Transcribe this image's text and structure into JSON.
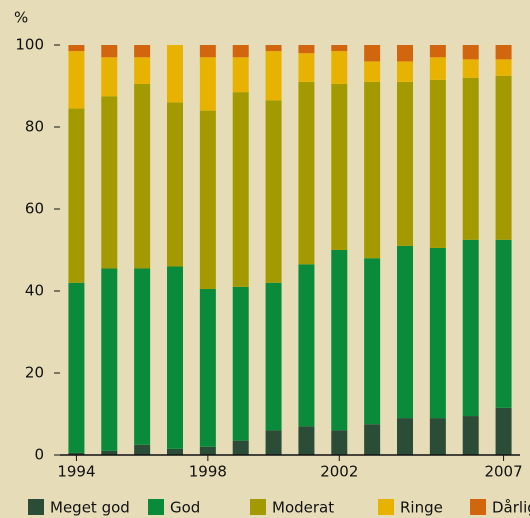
{
  "chart_data": {
    "type": "stacked_bar",
    "y_label": "%",
    "categories": [
      "1994",
      null,
      null,
      null,
      "1998",
      null,
      null,
      null,
      "2002",
      null,
      null,
      null,
      null,
      "2007"
    ],
    "series": [
      {
        "name": "Meget god",
        "color": "#2b4d37",
        "values": [
          0.5,
          1,
          2.5,
          1.5,
          2,
          3.5,
          6,
          7,
          6,
          7.5,
          9,
          9,
          9.5,
          11.5
        ]
      },
      {
        "name": "God",
        "color": "#0a8b3b",
        "values": [
          41.5,
          44.5,
          43,
          44.5,
          38.5,
          37.5,
          36,
          39.5,
          44,
          40.5,
          42,
          41.5,
          43,
          41
        ]
      },
      {
        "name": "Moderat",
        "color": "#a39a00",
        "values": [
          42.5,
          42,
          45,
          40,
          43.5,
          47.5,
          44.5,
          44.5,
          40.5,
          43,
          40,
          41,
          39.5,
          40
        ]
      },
      {
        "name": "Ringe",
        "color": "#e8b300",
        "values": [
          14,
          9.5,
          6.5,
          14,
          13,
          8.5,
          12,
          7,
          8,
          5,
          5,
          5.5,
          4.5,
          4
        ]
      },
      {
        "name": "Dårlig",
        "color": "#d2660f",
        "values": [
          1.5,
          3,
          3,
          0,
          3,
          3,
          1.5,
          2,
          1.5,
          4,
          4,
          3,
          3.5,
          3.5
        ]
      }
    ],
    "ylim": [
      0,
      100
    ],
    "yticks": [
      0,
      20,
      40,
      60,
      80,
      100
    ],
    "grid": false,
    "legend": "bottom"
  }
}
